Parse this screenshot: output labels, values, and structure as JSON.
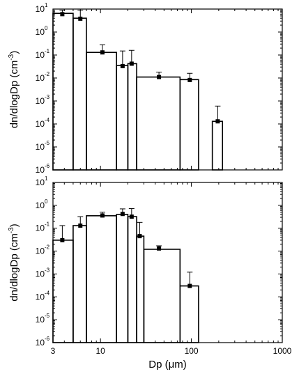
{
  "chart_data": [
    {
      "type": "bar",
      "panel": "top",
      "xscale": "log",
      "yscale": "log",
      "xlim": [
        3,
        1000
      ],
      "ylim": [
        1e-06,
        10
      ],
      "ylabel": "dn/dlogDp (cm",
      "ylabel_exp": "-3",
      "ylabel_close": ")",
      "xlabel": "",
      "bins": [
        {
          "lo": 3.0,
          "hi": 5.0,
          "value": 6.5
        },
        {
          "lo": 5.0,
          "hi": 7.0,
          "value": 4.0
        },
        {
          "lo": 7.0,
          "hi": 15.0,
          "value": 0.13
        },
        {
          "lo": 15.0,
          "hi": 20.0,
          "value": 0.035
        },
        {
          "lo": 20.0,
          "hi": 25.0,
          "value": 0.042
        },
        {
          "lo": 25.0,
          "hi": 75.0,
          "value": 0.011
        },
        {
          "lo": 75.0,
          "hi": 120.0,
          "value": 0.0085
        },
        {
          "lo": 170.0,
          "hi": 220.0,
          "value": 0.00013
        }
      ],
      "points": [
        {
          "x": 3.8,
          "y": 6.0,
          "err": 9.0
        },
        {
          "x": 6.0,
          "y": 3.8,
          "err": 9.0
        },
        {
          "x": 10.5,
          "y": 0.13,
          "err": 0.28
        },
        {
          "x": 17.5,
          "y": 0.033,
          "err": 0.15
        },
        {
          "x": 22.0,
          "y": 0.042,
          "err": 0.16
        },
        {
          "x": 44.0,
          "y": 0.011,
          "err": 0.018
        },
        {
          "x": 96.0,
          "y": 0.0082,
          "err": 0.016
        },
        {
          "x": 195.0,
          "y": 0.00013,
          "err": 0.0006
        }
      ],
      "yticks": [
        "10",
        "10",
        "10",
        "10",
        "10",
        "10",
        "10",
        "10"
      ],
      "ytick_exps": [
        "1",
        "0",
        "-1",
        "-2",
        "-3",
        "-4",
        "-5",
        "-6"
      ]
    },
    {
      "type": "bar",
      "panel": "bottom",
      "xscale": "log",
      "yscale": "log",
      "xlim": [
        3,
        1000
      ],
      "ylim": [
        1e-06,
        10
      ],
      "ylabel": "dn/dlogDp (cm",
      "ylabel_exp": "-3",
      "ylabel_close": ")",
      "xlabel": "Dp (μm)",
      "bins": [
        {
          "lo": 3.0,
          "hi": 5.0,
          "value": 0.03
        },
        {
          "lo": 5.0,
          "hi": 7.0,
          "value": 0.13
        },
        {
          "lo": 7.0,
          "hi": 15.0,
          "value": 0.35
        },
        {
          "lo": 15.0,
          "hi": 20.0,
          "value": 0.4
        },
        {
          "lo": 20.0,
          "hi": 25.0,
          "value": 0.32
        },
        {
          "lo": 25.0,
          "hi": 30.0,
          "value": 0.045
        },
        {
          "lo": 30.0,
          "hi": 75.0,
          "value": 0.012
        },
        {
          "lo": 75.0,
          "hi": 120.0,
          "value": 0.0003
        }
      ],
      "points": [
        {
          "x": 3.8,
          "y": 0.03,
          "err": 0.13
        },
        {
          "x": 6.0,
          "y": 0.13,
          "err": 0.32
        },
        {
          "x": 10.5,
          "y": 0.36,
          "err": 0.5
        },
        {
          "x": 17.5,
          "y": 0.42,
          "err": 0.7
        },
        {
          "x": 22.0,
          "y": 0.32,
          "err": 0.72
        },
        {
          "x": 27.0,
          "y": 0.045,
          "err": 0.18
        },
        {
          "x": 44.0,
          "y": 0.013,
          "err": 0.017
        },
        {
          "x": 96.0,
          "y": 0.0003,
          "err": 0.0012
        }
      ],
      "yticks": [
        "10",
        "10",
        "10",
        "10",
        "10",
        "10",
        "10",
        "10"
      ],
      "ytick_exps": [
        "1",
        "0",
        "-1",
        "-2",
        "-3",
        "-4",
        "-5",
        "-6"
      ],
      "xticks": [
        3,
        10,
        100,
        1000
      ],
      "xtick_labels": [
        "3",
        "10",
        "100",
        "1000"
      ]
    }
  ]
}
